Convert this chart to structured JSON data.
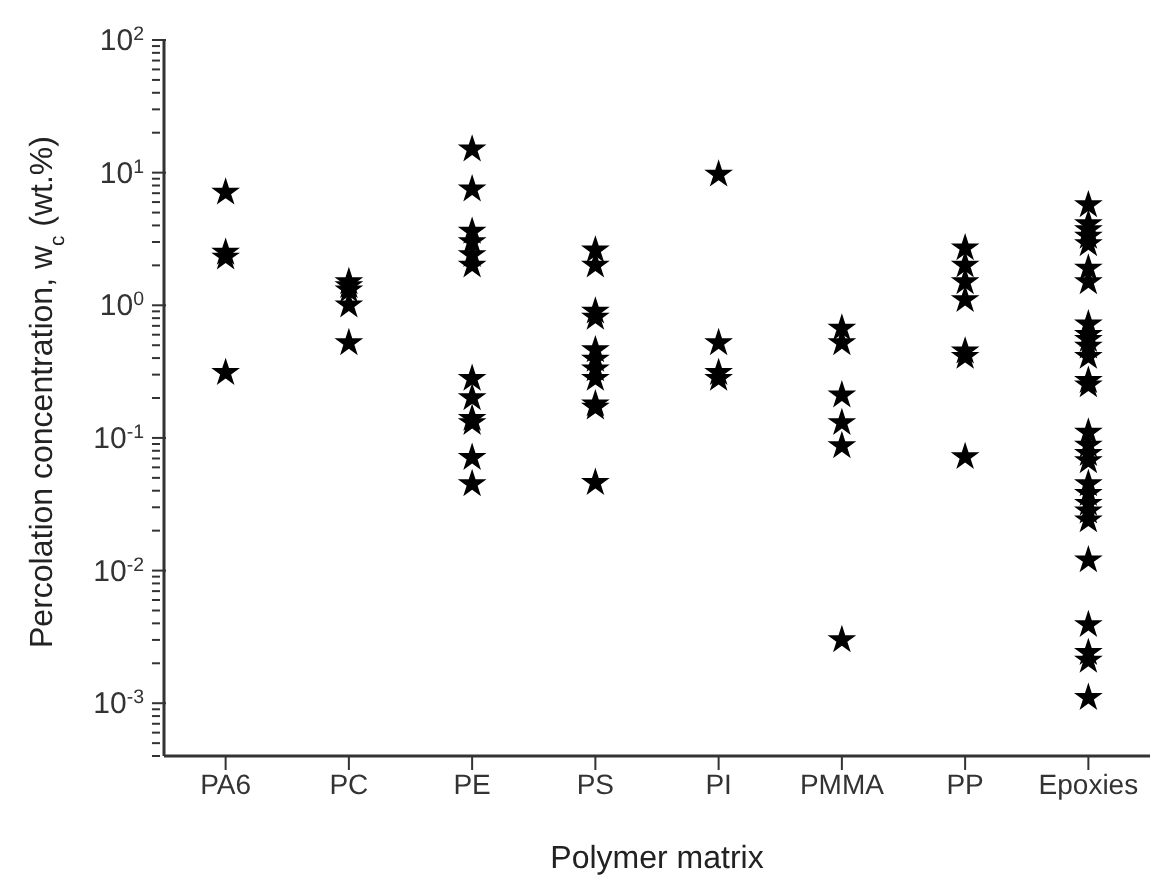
{
  "chart_data": {
    "type": "scatter",
    "xlabel": "Polymer matrix",
    "ylabel": "Percolation concentration, w$_{c}$ (wt.%)",
    "categories": [
      "PA6",
      "PC",
      "PE",
      "PS",
      "PI",
      "PMMA",
      "PP",
      "Epoxies"
    ],
    "log": true,
    "ylim": [
      0.0004,
      100
    ],
    "grid": false,
    "legend": false,
    "marker": "star",
    "yticks": [
      {
        "value": 0.0004,
        "label": null
      },
      {
        "value": 0.0005,
        "label": null
      },
      {
        "value": 0.0006,
        "label": null
      },
      {
        "value": 0.0007,
        "label": null
      },
      {
        "value": 0.0008,
        "label": null
      },
      {
        "value": 0.0009,
        "label": null
      },
      {
        "value": 0.001,
        "label": "10$^{-3}$"
      },
      {
        "value": 0.002,
        "label": null
      },
      {
        "value": 0.003,
        "label": null
      },
      {
        "value": 0.004,
        "label": null
      },
      {
        "value": 0.005,
        "label": null
      },
      {
        "value": 0.006,
        "label": null
      },
      {
        "value": 0.007,
        "label": null
      },
      {
        "value": 0.008,
        "label": null
      },
      {
        "value": 0.009,
        "label": null
      },
      {
        "value": 0.01,
        "label": "10$^{-2}$"
      },
      {
        "value": 0.02,
        "label": null
      },
      {
        "value": 0.03,
        "label": null
      },
      {
        "value": 0.04,
        "label": null
      },
      {
        "value": 0.05,
        "label": null
      },
      {
        "value": 0.06,
        "label": null
      },
      {
        "value": 0.07,
        "label": null
      },
      {
        "value": 0.08,
        "label": null
      },
      {
        "value": 0.09,
        "label": null
      },
      {
        "value": 0.1,
        "label": "10$^{-1}$"
      },
      {
        "value": 0.2,
        "label": null
      },
      {
        "value": 0.3,
        "label": null
      },
      {
        "value": 0.4,
        "label": null
      },
      {
        "value": 0.5,
        "label": null
      },
      {
        "value": 0.6,
        "label": null
      },
      {
        "value": 0.7,
        "label": null
      },
      {
        "value": 0.8,
        "label": null
      },
      {
        "value": 0.9,
        "label": null
      },
      {
        "value": 1,
        "label": "10$^{0}$"
      },
      {
        "value": 2,
        "label": null
      },
      {
        "value": 3,
        "label": null
      },
      {
        "value": 4,
        "label": null
      },
      {
        "value": 5,
        "label": null
      },
      {
        "value": 6,
        "label": null
      },
      {
        "value": 7,
        "label": null
      },
      {
        "value": 8,
        "label": null
      },
      {
        "value": 9,
        "label": null
      },
      {
        "value": 10,
        "label": "10$^{1}$"
      },
      {
        "value": 20,
        "label": null
      },
      {
        "value": 30,
        "label": null
      },
      {
        "value": 40,
        "label": null
      },
      {
        "value": 50,
        "label": null
      },
      {
        "value": 60,
        "label": null
      },
      {
        "value": 70,
        "label": null
      },
      {
        "value": 80,
        "label": null
      },
      {
        "value": 90,
        "label": null
      },
      {
        "value": 100,
        "label": "10$^{2}$"
      }
    ],
    "series": [
      {
        "color": "#000000",
        "x": [
          "PA6",
          "PA6",
          "PA6",
          "PA6",
          "PC",
          "PC",
          "PC",
          "PC",
          "PC",
          "PE",
          "PE",
          "PE",
          "PE",
          "PE",
          "PE",
          "PE",
          "PE",
          "PE",
          "PE",
          "PE",
          "PE",
          "PS",
          "PS",
          "PS",
          "PS",
          "PS",
          "PS",
          "PS",
          "PS",
          "PS",
          "PS",
          "PS",
          "PI",
          "PI",
          "PI",
          "PI",
          "PMMA",
          "PMMA",
          "PMMA",
          "PMMA",
          "PMMA",
          "PMMA",
          "PP",
          "PP",
          "PP",
          "PP",
          "PP",
          "PP",
          "PP",
          "Epoxies",
          "Epoxies",
          "Epoxies",
          "Epoxies",
          "Epoxies",
          "Epoxies",
          "Epoxies",
          "Epoxies",
          "Epoxies",
          "Epoxies",
          "Epoxies",
          "Epoxies",
          "Epoxies",
          "Epoxies",
          "Epoxies",
          "Epoxies",
          "Epoxies",
          "Epoxies",
          "Epoxies",
          "Epoxies",
          "Epoxies",
          "Epoxies",
          "Epoxies",
          "Epoxies",
          "Epoxies",
          "Epoxies",
          "Epoxies",
          "Epoxies"
        ],
        "values": [
          7.1,
          2.5,
          2.3,
          0.31,
          1.5,
          1.4,
          1.3,
          1.0,
          0.52,
          15,
          7.5,
          3.6,
          3.0,
          2.4,
          2.0,
          0.28,
          0.2,
          0.14,
          0.13,
          0.071,
          0.045,
          2.6,
          2.0,
          0.9,
          0.81,
          0.46,
          0.39,
          0.33,
          0.28,
          0.18,
          0.17,
          0.046,
          9.7,
          0.52,
          0.31,
          0.28,
          0.67,
          0.52,
          0.21,
          0.13,
          0.087,
          0.003,
          2.7,
          2.0,
          1.5,
          1.1,
          0.45,
          0.41,
          0.072,
          5.7,
          4.1,
          3.7,
          3.3,
          2.9,
          1.9,
          1.5,
          0.72,
          0.6,
          0.55,
          0.49,
          0.41,
          0.27,
          0.25,
          0.11,
          0.088,
          0.076,
          0.067,
          0.045,
          0.038,
          0.032,
          0.028,
          0.024,
          0.012,
          0.0039,
          0.0024,
          0.0021,
          0.0011
        ]
      }
    ]
  }
}
